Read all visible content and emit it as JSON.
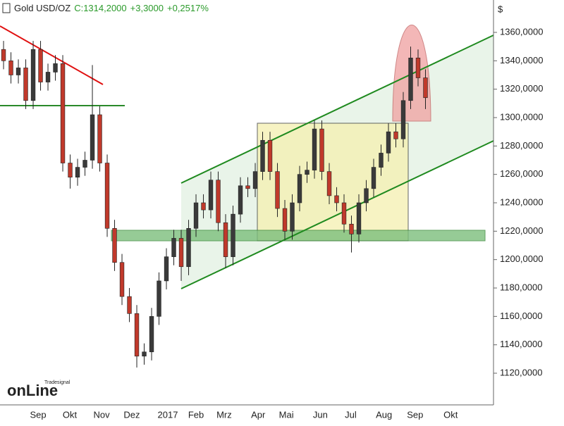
{
  "header": {
    "title": "Gold USD/OZ",
    "close_label": "C:1314,2000",
    "change": "+3,3000",
    "change_pct": "+0,2517%"
  },
  "watermark": {
    "brand": "Tradesignal",
    "product": "onLine"
  },
  "chart_data": {
    "type": "candlestick",
    "ylabel": "$",
    "up_color": "#3a3a3a",
    "down_color": "#c0392b",
    "x": [
      0,
      1,
      2,
      3,
      4,
      5,
      6,
      7,
      8,
      9,
      10,
      11,
      12,
      13,
      14,
      15,
      16,
      17,
      18,
      19,
      20,
      21,
      22,
      23,
      24,
      25,
      26,
      27,
      28,
      29,
      30,
      31,
      32,
      33,
      34,
      35,
      36,
      37,
      38,
      39,
      40,
      41,
      42,
      43,
      44,
      45,
      46,
      47,
      48,
      49,
      50,
      51,
      52,
      53,
      54,
      55,
      56,
      57
    ],
    "open": [
      1348,
      1340,
      1330,
      1335,
      1312,
      1348,
      1325,
      1332,
      1338,
      1268,
      1258,
      1265,
      1270,
      1302,
      1268,
      1222,
      1198,
      1174,
      1162,
      1132,
      1135,
      1160,
      1185,
      1202,
      1215,
      1195,
      1222,
      1240,
      1235,
      1256,
      1226,
      1202,
      1232,
      1252,
      1250,
      1262,
      1284,
      1262,
      1236,
      1220,
      1240,
      1260,
      1263,
      1292,
      1262,
      1245,
      1240,
      1225,
      1218,
      1240,
      1250,
      1265,
      1275,
      1290,
      1285,
      1312,
      1342,
      1328
    ],
    "high": [
      1354,
      1346,
      1341,
      1341,
      1354,
      1354,
      1338,
      1344,
      1344,
      1274,
      1271,
      1276,
      1337,
      1308,
      1274,
      1228,
      1204,
      1180,
      1168,
      1141,
      1166,
      1191,
      1208,
      1221,
      1221,
      1228,
      1246,
      1246,
      1262,
      1262,
      1232,
      1238,
      1258,
      1258,
      1268,
      1290,
      1290,
      1268,
      1242,
      1246,
      1266,
      1269,
      1298,
      1298,
      1268,
      1251,
      1246,
      1231,
      1246,
      1256,
      1271,
      1281,
      1296,
      1296,
      1318,
      1350,
      1348,
      1334
    ],
    "low": [
      1334,
      1324,
      1324,
      1306,
      1306,
      1319,
      1319,
      1326,
      1262,
      1250,
      1252,
      1259,
      1264,
      1262,
      1216,
      1192,
      1168,
      1156,
      1124,
      1126,
      1129,
      1154,
      1179,
      1196,
      1185,
      1189,
      1216,
      1229,
      1229,
      1220,
      1194,
      1196,
      1226,
      1244,
      1244,
      1256,
      1256,
      1230,
      1214,
      1214,
      1234,
      1254,
      1257,
      1256,
      1239,
      1234,
      1219,
      1205,
      1212,
      1234,
      1244,
      1259,
      1269,
      1279,
      1279,
      1306,
      1322,
      1306
    ],
    "close": [
      1340,
      1330,
      1335,
      1312,
      1348,
      1325,
      1332,
      1338,
      1268,
      1258,
      1265,
      1270,
      1302,
      1268,
      1222,
      1198,
      1174,
      1162,
      1132,
      1135,
      1160,
      1185,
      1202,
      1215,
      1195,
      1222,
      1240,
      1235,
      1256,
      1226,
      1202,
      1232,
      1252,
      1250,
      1262,
      1284,
      1262,
      1236,
      1220,
      1240,
      1260,
      1263,
      1292,
      1262,
      1245,
      1240,
      1225,
      1218,
      1240,
      1250,
      1265,
      1275,
      1290,
      1285,
      1312,
      1342,
      1328,
      1314
    ],
    "xlim": [
      -0.48,
      66.19
    ],
    "xticks": [
      {
        "value": 4.67,
        "label": "Sep"
      },
      {
        "value": 8.95,
        "label": "Okt"
      },
      {
        "value": 13.24,
        "label": "Nov"
      },
      {
        "value": 17.33,
        "label": "Dez"
      },
      {
        "value": 22.19,
        "label": "2017"
      },
      {
        "value": 26,
        "label": "Feb"
      },
      {
        "value": 29.8,
        "label": "Mrz"
      },
      {
        "value": 34.4,
        "label": "Apr"
      },
      {
        "value": 38.2,
        "label": "Mai"
      },
      {
        "value": 42.8,
        "label": "Jun"
      },
      {
        "value": 46.9,
        "label": "Jul"
      },
      {
        "value": 51.4,
        "label": "Aug"
      },
      {
        "value": 55.6,
        "label": "Sep"
      },
      {
        "value": 60.4,
        "label": "Okt"
      }
    ],
    "ylim": [
      1097.7,
      1382.8
    ],
    "yticks": [
      {
        "value": 1120,
        "label": "1120,0000"
      },
      {
        "value": 1140,
        "label": "1140,0000"
      },
      {
        "value": 1160,
        "label": "1160,0000"
      },
      {
        "value": 1180,
        "label": "1180,0000"
      },
      {
        "value": 1200,
        "label": "1200,0000"
      },
      {
        "value": 1220,
        "label": "1220,0000"
      },
      {
        "value": 1240,
        "label": "1240,0000"
      },
      {
        "value": 1260,
        "label": "1260,0000"
      },
      {
        "value": 1280,
        "label": "1280,0000"
      },
      {
        "value": 1300,
        "label": "1300,0000"
      },
      {
        "value": 1320,
        "label": "1320,0000"
      },
      {
        "value": 1340,
        "label": "1340,0000"
      },
      {
        "value": 1360,
        "label": "1360,0000"
      }
    ]
  }
}
